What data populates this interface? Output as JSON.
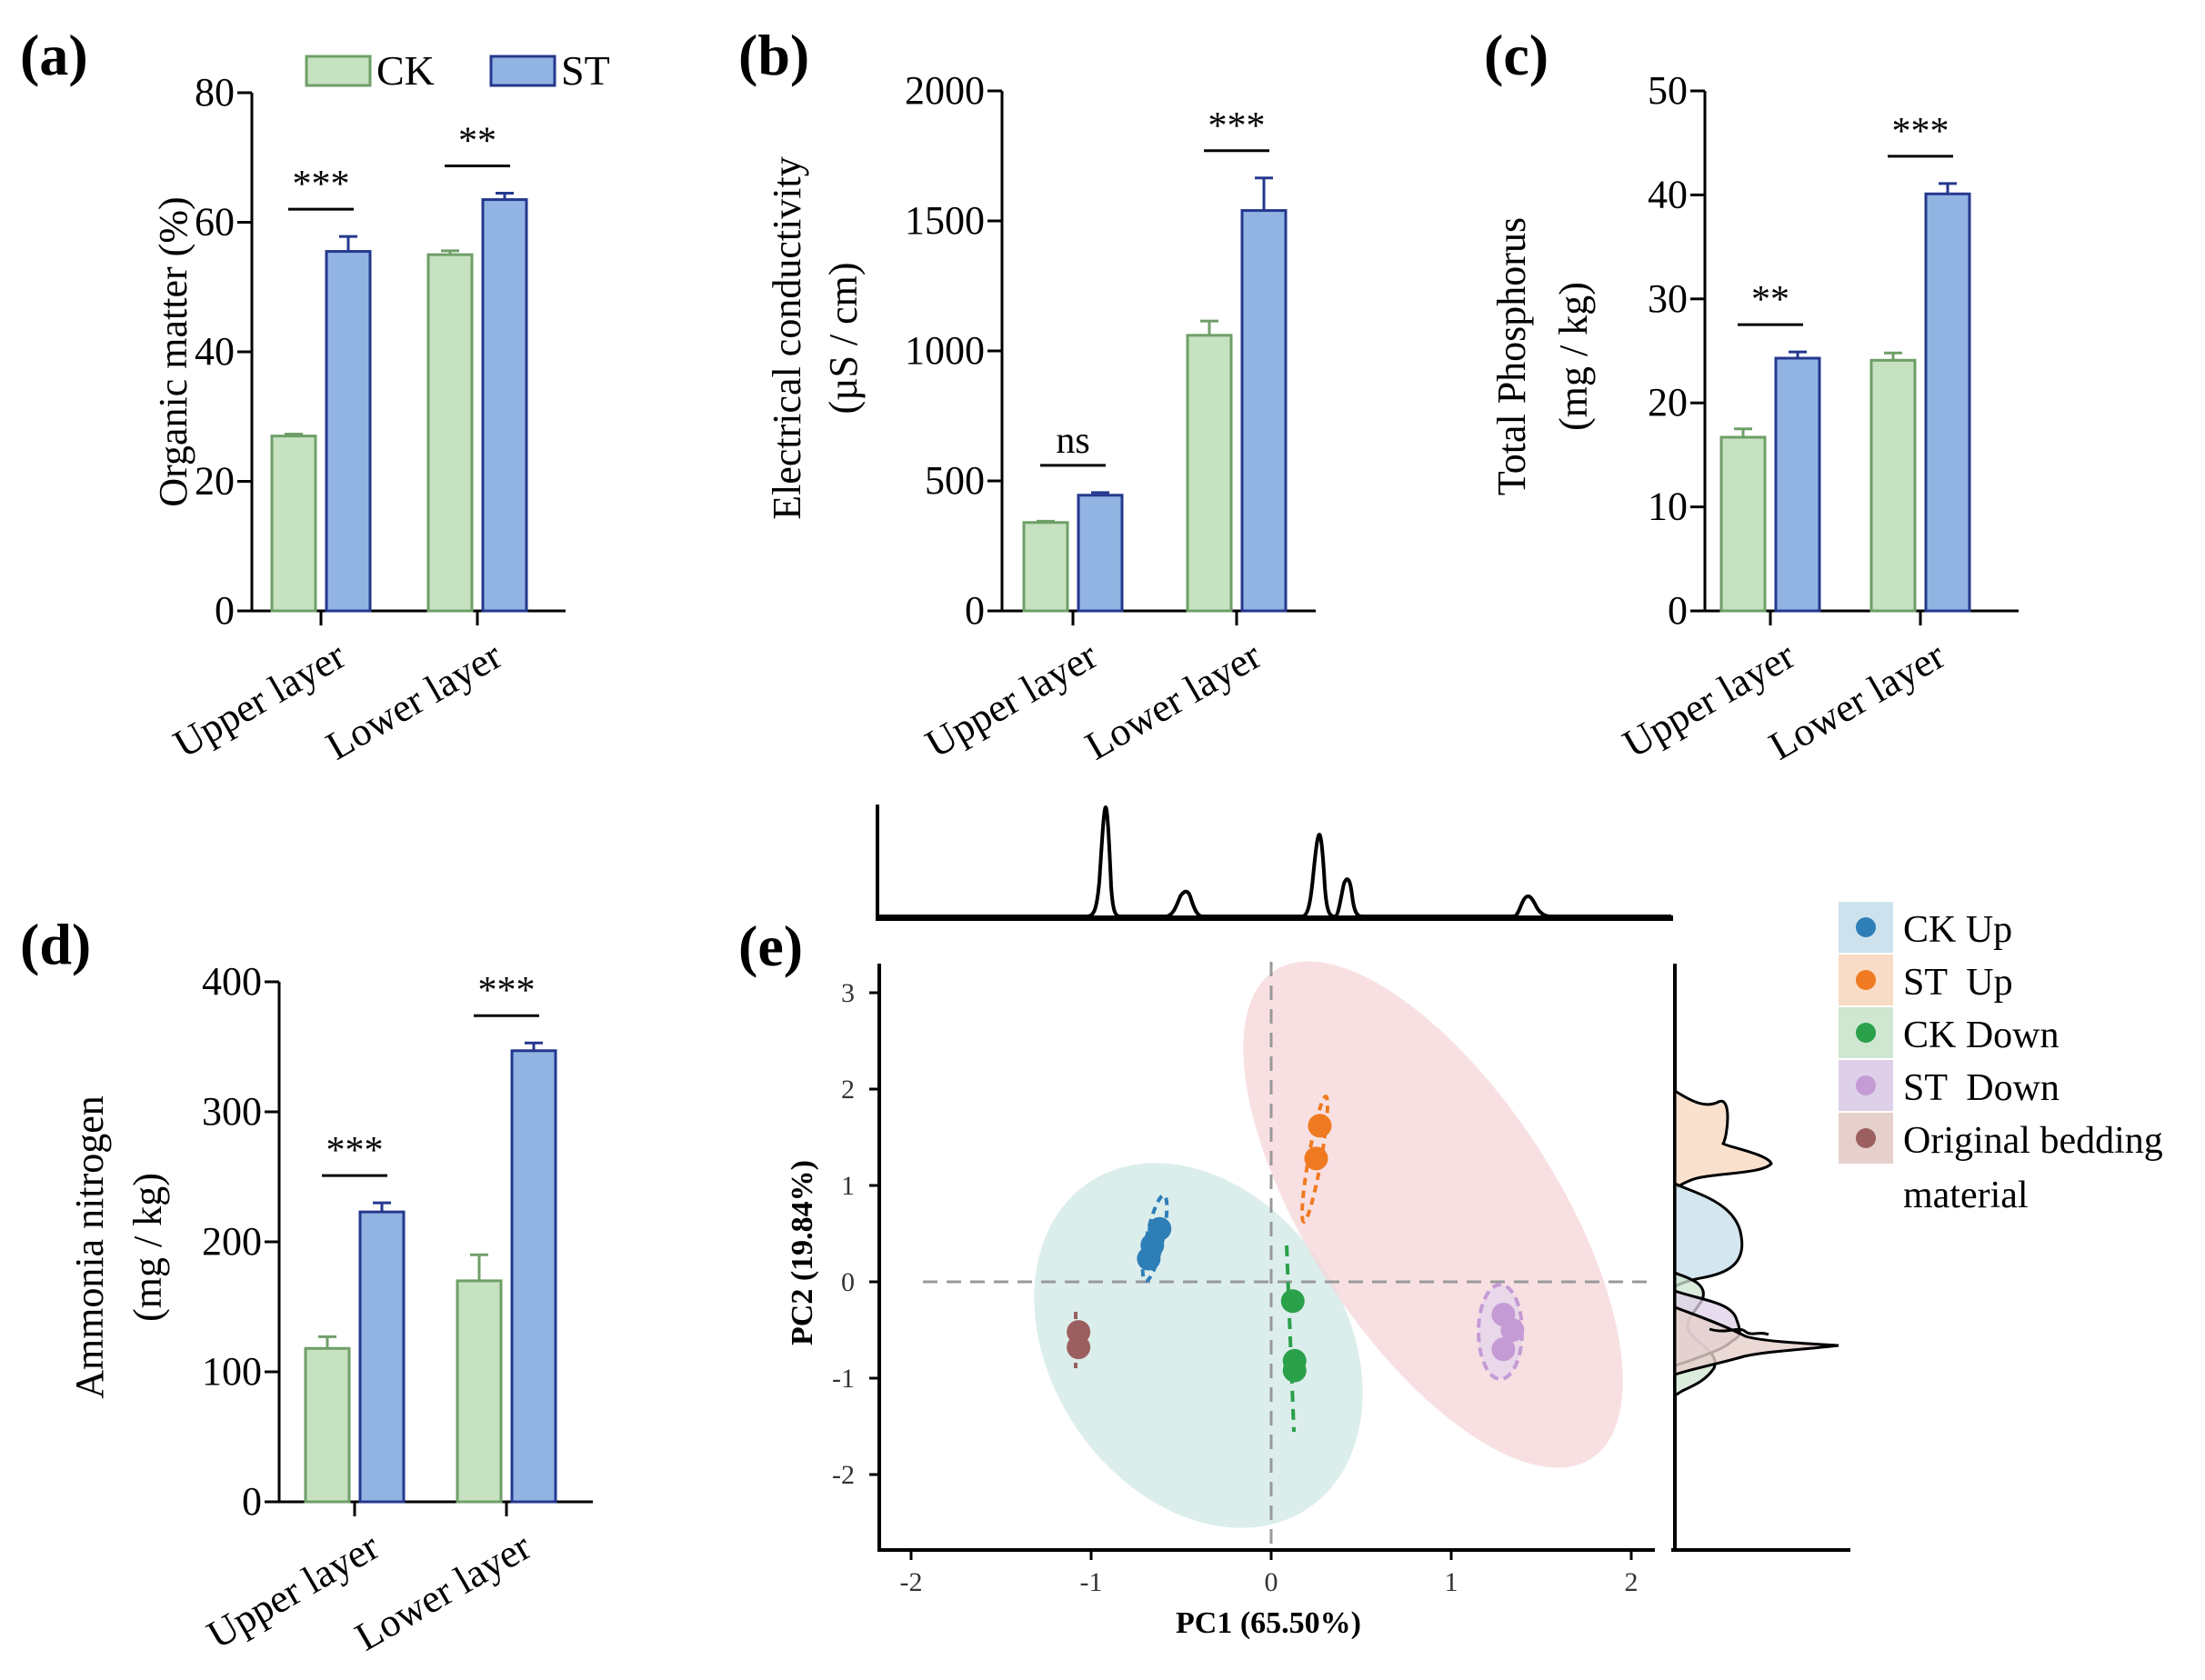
{
  "colors": {
    "ck_fill": "#c6e2c0",
    "ck_stroke": "#6f9f68",
    "st_fill": "#92b4e2",
    "st_stroke": "#25388f",
    "axis": "#000000",
    "pca_ck_up": "#2e7fb8",
    "pca_st_up": "#ef7a21",
    "pca_ck_down": "#2aa04a",
    "pca_st_down": "#c49bd4",
    "pca_original": "#9b5f5f",
    "ellipse_ck": "#cfe8e6",
    "ellipse_st": "#f6d6d8"
  },
  "legend_bar": {
    "ck": "CK",
    "st": "ST"
  },
  "chart_data": [
    {
      "id": "a",
      "type": "bar",
      "panel_label": "(a)",
      "ylabel": "Organic matter (%)",
      "ylim": [
        0,
        80
      ],
      "yticks": [
        0,
        20,
        40,
        60,
        80
      ],
      "categories": [
        "Upper layer",
        "Lower layer"
      ],
      "series": [
        {
          "name": "CK",
          "values": [
            27,
            55
          ],
          "errors": [
            0.3,
            0.6
          ]
        },
        {
          "name": "ST",
          "values": [
            55.5,
            63.5
          ],
          "errors": [
            2.3,
            1.0
          ]
        }
      ],
      "significance": [
        "***",
        "**"
      ]
    },
    {
      "id": "b",
      "type": "bar",
      "panel_label": "(b)",
      "ylabel": "Electrical conductivity",
      "ylabel2": "(µS / cm)",
      "ylim": [
        0,
        2000
      ],
      "yticks": [
        0,
        500,
        1000,
        1500,
        2000
      ],
      "categories": [
        "Upper layer",
        "Lower layer"
      ],
      "series": [
        {
          "name": "CK",
          "values": [
            340,
            1060
          ],
          "errors": [
            5,
            55
          ]
        },
        {
          "name": "ST",
          "values": [
            445,
            1540
          ],
          "errors": [
            10,
            125
          ]
        }
      ],
      "significance": [
        "ns",
        "***"
      ]
    },
    {
      "id": "c",
      "type": "bar",
      "panel_label": "(c)",
      "ylabel": "Total Phosphorus",
      "ylabel2": "(mg / kg)",
      "ylim": [
        0,
        50
      ],
      "yticks": [
        0,
        10,
        20,
        30,
        40,
        50
      ],
      "categories": [
        "Upper layer",
        "Lower layer"
      ],
      "series": [
        {
          "name": "CK",
          "values": [
            16.7,
            24.1
          ],
          "errors": [
            0.8,
            0.7
          ]
        },
        {
          "name": "ST",
          "values": [
            24.3,
            40.1
          ],
          "errors": [
            0.6,
            1.0
          ]
        }
      ],
      "significance": [
        "**",
        "***"
      ]
    },
    {
      "id": "d",
      "type": "bar",
      "panel_label": "(d)",
      "ylabel": "Ammonia nitrogen",
      "ylabel2": "(mg / kg)",
      "ylim": [
        0,
        400
      ],
      "yticks": [
        0,
        100,
        200,
        300,
        400
      ],
      "categories": [
        "Upper layer",
        "Lower layer"
      ],
      "series": [
        {
          "name": "CK",
          "values": [
            118,
            170
          ],
          "errors": [
            9,
            20
          ]
        },
        {
          "name": "ST",
          "values": [
            223,
            347
          ],
          "errors": [
            7,
            6
          ]
        }
      ],
      "significance": [
        "***",
        "***"
      ]
    },
    {
      "id": "e",
      "type": "scatter",
      "panel_label": "(e)",
      "xlabel": "PC1 (65.50%)",
      "ylabel": "PC2 (19.84%)",
      "xlim": [
        -2.2,
        2.0
      ],
      "ylim": [
        -2.8,
        3.2
      ],
      "xticks": [
        -2,
        -1,
        0,
        1,
        2
      ],
      "yticks": [
        -2,
        -1,
        0,
        1,
        2,
        3
      ],
      "groups": [
        {
          "name": "CK Up",
          "color": "#2e7fb8",
          "points": [
            [
              -0.62,
              0.55
            ],
            [
              -0.66,
              0.38
            ],
            [
              -0.68,
              0.24
            ]
          ]
        },
        {
          "name": "ST  Up",
          "color": "#ef7a21",
          "points": [
            [
              0.27,
              1.62
            ],
            [
              0.25,
              1.28
            ]
          ]
        },
        {
          "name": "CK Down",
          "color": "#2aa04a",
          "points": [
            [
              0.12,
              -0.2
            ],
            [
              0.13,
              -0.82
            ],
            [
              0.13,
              -0.92
            ]
          ]
        },
        {
          "name": "ST  Down",
          "color": "#c49bd4",
          "points": [
            [
              1.29,
              -0.34
            ],
            [
              1.34,
              -0.5
            ],
            [
              1.29,
              -0.7
            ]
          ]
        },
        {
          "name": "Original bedding material",
          "color": "#9b5f5f",
          "points": [
            [
              -1.07,
              -0.52
            ],
            [
              -1.07,
              -0.68
            ]
          ]
        }
      ],
      "legend": [
        "CK Up",
        "ST  Up",
        "CK Down",
        "ST  Down",
        "Original bedding",
        "material"
      ]
    }
  ]
}
